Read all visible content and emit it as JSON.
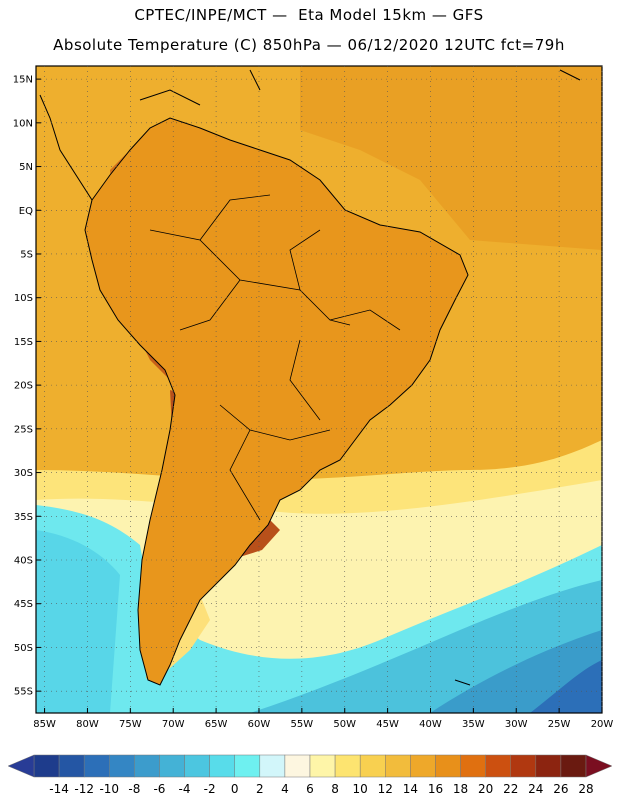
{
  "header": {
    "line1": "CPTEC/INPE/MCT —  Eta Model 15km — GFS",
    "line2": "Absolute Temperature (C) 850hPa — 06/12/2020 12UTC fct=79h"
  },
  "map": {
    "lat_labels": [
      "15N",
      "10N",
      "5N",
      "EQ",
      "5S",
      "10S",
      "15S",
      "20S",
      "25S",
      "30S",
      "35S",
      "40S",
      "45S",
      "50S",
      "55S"
    ],
    "lon_labels": [
      "85W",
      "80W",
      "75W",
      "70W",
      "65W",
      "60W",
      "55W",
      "50W",
      "45W",
      "40W",
      "35W",
      "30W",
      "25W",
      "20W"
    ],
    "lat_values": [
      15,
      10,
      5,
      0,
      -5,
      -10,
      -15,
      -20,
      -25,
      -30,
      -35,
      -40,
      -45,
      -50,
      -55
    ],
    "lon_values": [
      -85,
      -80,
      -75,
      -70,
      -65,
      -60,
      -55,
      -50,
      -45,
      -40,
      -35,
      -30,
      -25,
      -20
    ],
    "lat_range": [
      -57.5,
      16.5
    ],
    "lon_range": [
      -86,
      -20
    ]
  },
  "colorbar": {
    "labels": [
      "-14",
      "-12",
      "-10",
      "-8",
      "-6",
      "-4",
      "-2",
      "0",
      "2",
      "4",
      "6",
      "8",
      "10",
      "12",
      "14",
      "16",
      "18",
      "20",
      "22",
      "24",
      "26",
      "28"
    ],
    "colors": [
      "#1e3c8c",
      "#2456a4",
      "#2c6fb8",
      "#3486c4",
      "#3c9ccc",
      "#44b2d6",
      "#4cc6e0",
      "#58dcea",
      "#6ef0f0",
      "#d2f6fa",
      "#fdf6e0",
      "#fef5a8",
      "#fde470",
      "#f8d050",
      "#f2bc3c",
      "#eea82a",
      "#e8901a",
      "#e07010",
      "#cc5010",
      "#b03810",
      "#8c2410",
      "#6a1a10"
    ],
    "under_color": "#283c96",
    "over_color": "#7a0e20"
  },
  "colors": {
    "ocean_warm": "#eeaf2e",
    "land_warm": "#e89a1c",
    "hot": "#d06a1a",
    "very_hot": "#b04a14",
    "cool": "#fdf3b0",
    "cold": "#5ad4e6",
    "coastline": "#000000"
  }
}
